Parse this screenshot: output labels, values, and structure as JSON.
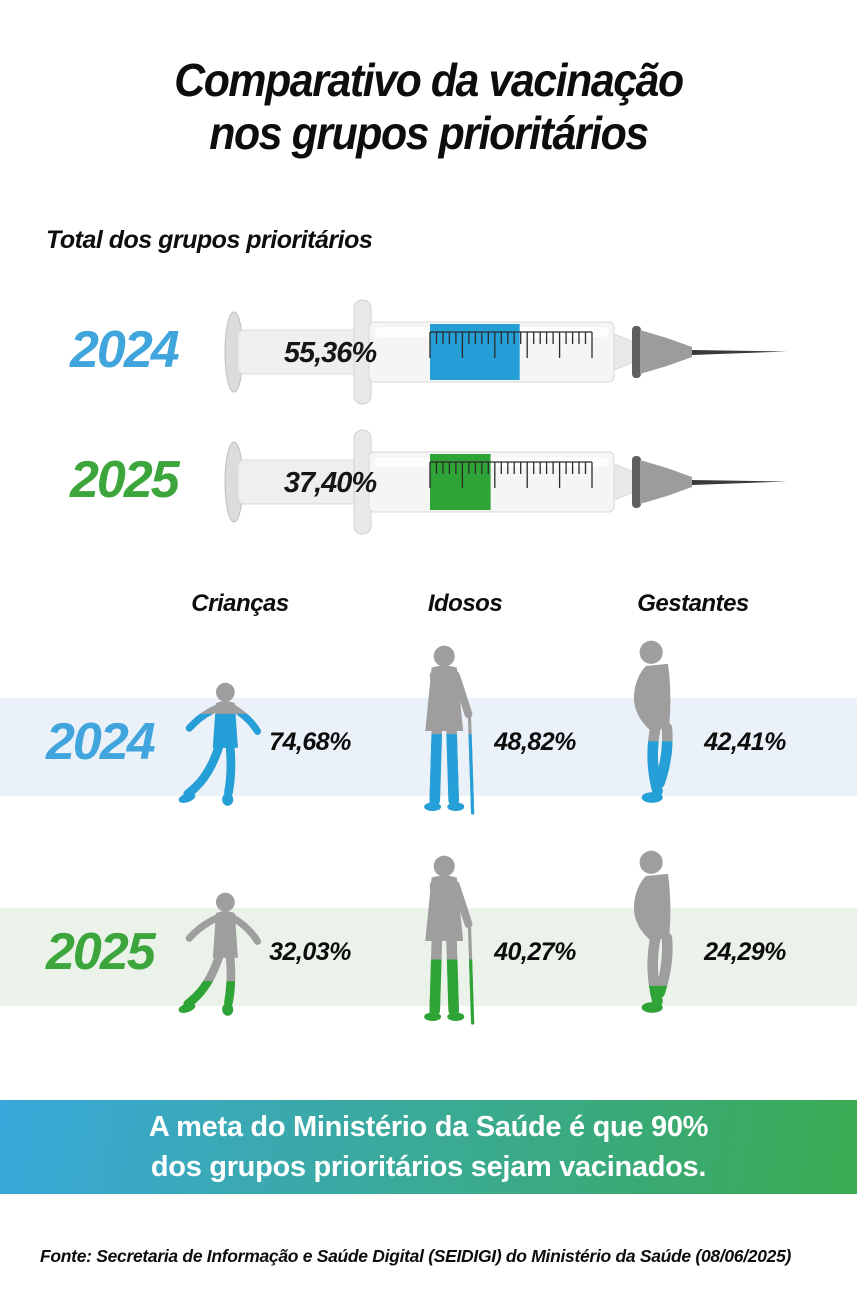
{
  "title": {
    "line1": "Comparativo da vacinação",
    "line2": "nos grupos prioritários"
  },
  "subtitle": "Total dos grupos prioritários",
  "colors": {
    "year_blue": "#3FA5DC",
    "year_green": "#3CA63C",
    "fill_blue": "#259FD8",
    "fill_green": "#2FA436",
    "band_blue": "#EAF1F8",
    "band_green": "#EAF2E9",
    "banner_left": "#39A8DB",
    "banner_right": "#3BAB52"
  },
  "syringes": [
    {
      "year": "2024",
      "value_label": "55,36%",
      "pct": 55.36,
      "color_key": "blue"
    },
    {
      "year": "2025",
      "value_label": "37,40%",
      "pct": 37.4,
      "color_key": "green"
    }
  ],
  "groups": {
    "headers": [
      "Crianças",
      "Idosos",
      "Gestantes"
    ],
    "rows": [
      {
        "year": "2024",
        "cells": [
          {
            "group": "Crianças",
            "label": "74,68%",
            "pct": 74.68
          },
          {
            "group": "Idosos",
            "label": "48,82%",
            "pct": 48.82
          },
          {
            "group": "Gestantes",
            "label": "42,41%",
            "pct": 42.41
          }
        ]
      },
      {
        "year": "2025",
        "cells": [
          {
            "group": "Crianças",
            "label": "32,03%",
            "pct": 32.03
          },
          {
            "group": "Idosos",
            "label": "40,27%",
            "pct": 40.27
          },
          {
            "group": "Gestantes",
            "label": "24,29%",
            "pct": 24.29
          }
        ]
      }
    ]
  },
  "banner": {
    "line1": "A meta do Ministério da Saúde é que 90%",
    "line2": "dos grupos prioritários sejam vacinados."
  },
  "footer": "Fonte: Secretaria de Informação e Saúde Digital (SEIDIGI) do Ministério da Saúde (08/06/2025)",
  "icons": {
    "syringe": "syringe-icon",
    "child": "child-figure-icon",
    "elderly": "elderly-figure-icon",
    "pregnant": "pregnant-figure-icon"
  },
  "chart_data": {
    "type": "bar",
    "title": "Comparativo da vacinação nos grupos prioritários",
    "categories": [
      "Total dos grupos prioritários",
      "Crianças",
      "Idosos",
      "Gestantes"
    ],
    "series": [
      {
        "name": "2024",
        "color": "#3FA5DC",
        "values": [
          55.36,
          74.68,
          48.82,
          42.41
        ]
      },
      {
        "name": "2025",
        "color": "#3CA63C",
        "values": [
          37.4,
          32.03,
          40.27,
          24.29
        ]
      }
    ],
    "unit": "%",
    "goal_pct": 90,
    "annotations": [
      "A meta do Ministério da Saúde é que 90% dos grupos prioritários sejam vacinados."
    ],
    "source": "Fonte: Secretaria de Informação e Saúde Digital (SEIDIGI) do Ministério da Saúde (08/06/2025)",
    "legend_position": "row-labels-left",
    "grid": false
  }
}
